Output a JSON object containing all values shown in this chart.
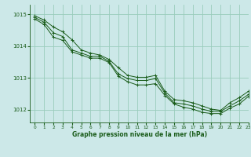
{
  "bg_color": "#cce8e8",
  "grid_color": "#99ccbb",
  "line_color": "#1a5c1a",
  "xlim": [
    -0.5,
    23
  ],
  "ylim": [
    1011.6,
    1015.3
  ],
  "yticks": [
    1012,
    1013,
    1014,
    1015
  ],
  "xticks": [
    0,
    1,
    2,
    3,
    4,
    5,
    6,
    7,
    8,
    9,
    10,
    11,
    12,
    13,
    14,
    15,
    16,
    17,
    18,
    19,
    20,
    21,
    22,
    23
  ],
  "xlabel": "Graphe pression niveau de la mer (hPa)",
  "series": {
    "line1": [
      1014.95,
      1014.82,
      1014.6,
      1014.45,
      1014.2,
      1013.88,
      1013.78,
      1013.72,
      1013.58,
      1013.32,
      1013.08,
      1013.02,
      1013.02,
      1013.08,
      1012.58,
      1012.32,
      1012.28,
      1012.22,
      1012.12,
      1012.02,
      1011.98,
      1012.22,
      1012.38,
      1012.58
    ],
    "line2": [
      1014.9,
      1014.75,
      1014.42,
      1014.3,
      1013.88,
      1013.78,
      1013.68,
      1013.68,
      1013.52,
      1013.12,
      1012.98,
      1012.92,
      1012.92,
      1012.98,
      1012.52,
      1012.22,
      1012.18,
      1012.12,
      1012.02,
      1011.95,
      1011.95,
      1012.12,
      1012.28,
      1012.48
    ],
    "line3": [
      1014.85,
      1014.68,
      1014.28,
      1014.18,
      1013.82,
      1013.72,
      1013.62,
      1013.62,
      1013.48,
      1013.05,
      1012.88,
      1012.78,
      1012.78,
      1012.82,
      1012.45,
      1012.18,
      1012.08,
      1012.02,
      1011.92,
      1011.88,
      1011.88,
      1012.05,
      1012.18,
      1012.42
    ]
  }
}
